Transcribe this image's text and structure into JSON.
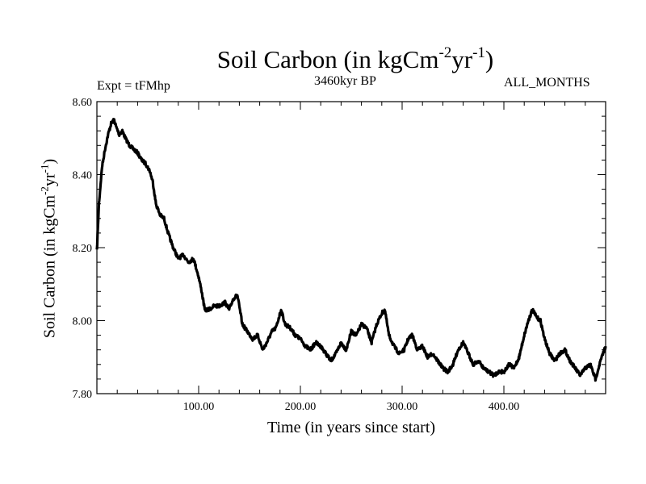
{
  "chart_data": {
    "type": "line",
    "title": {
      "main": "Soil Carbon (in kgCm",
      "sup1": "-2",
      "mid": "yr",
      "sup2": "-1",
      "end": ")"
    },
    "subtitle": "3460kyr BP",
    "experiment": "Expt = tFMhp",
    "months": "ALL_MONTHS",
    "xlabel": "Time (in years since start)",
    "ylabel": {
      "main": "Soil Carbon (in kgCm",
      "sup1": "-2",
      "mid": "yr",
      "sup2": "-1",
      "end": ")"
    },
    "xlim": [
      0,
      500
    ],
    "ylim": [
      7.8,
      8.6
    ],
    "x_ticks": [
      100,
      200,
      300,
      400
    ],
    "x_tick_labels": [
      "100.00",
      "200.00",
      "300.00",
      "400.00"
    ],
    "y_ticks": [
      7.8,
      8.0,
      8.2,
      8.4,
      8.6
    ],
    "y_tick_labels": [
      "7.80",
      "8.00",
      "8.20",
      "8.40",
      "8.60"
    ],
    "grid": false,
    "series": [
      {
        "name": "Soil Carbon",
        "color": "#000000",
        "x": [
          0,
          2,
          5,
          8,
          11,
          14,
          17,
          19,
          22,
          25,
          28,
          32,
          36,
          40,
          44,
          48,
          52,
          55,
          58,
          62,
          66,
          70,
          75,
          80,
          85,
          90,
          95,
          100,
          103,
          106,
          110,
          115,
          120,
          126,
          130,
          134,
          138,
          143,
          148,
          153,
          158,
          163,
          167,
          172,
          176,
          181,
          185,
          190,
          195,
          200,
          205,
          210,
          215,
          220,
          225,
          230,
          235,
          240,
          245,
          250,
          255,
          260,
          265,
          270,
          275,
          280,
          283,
          287,
          292,
          297,
          302,
          306,
          310,
          315,
          320,
          325,
          330,
          335,
          340,
          345,
          350,
          355,
          360,
          365,
          370,
          375,
          380,
          385,
          390,
          395,
          400,
          405,
          410,
          415,
          420,
          424,
          428,
          432,
          436,
          440,
          445,
          450,
          455,
          460,
          465,
          470,
          475,
          480,
          485,
          490,
          495,
          500
        ],
        "y": [
          8.19,
          8.32,
          8.42,
          8.47,
          8.51,
          8.54,
          8.55,
          8.53,
          8.51,
          8.52,
          8.5,
          8.48,
          8.47,
          8.46,
          8.44,
          8.43,
          8.41,
          8.38,
          8.32,
          8.29,
          8.28,
          8.24,
          8.2,
          8.17,
          8.18,
          8.16,
          8.17,
          8.12,
          8.08,
          8.03,
          8.03,
          8.04,
          8.04,
          8.05,
          8.03,
          8.06,
          8.07,
          7.99,
          7.97,
          7.95,
          7.96,
          7.92,
          7.94,
          7.97,
          7.98,
          8.03,
          7.99,
          7.98,
          7.96,
          7.95,
          7.93,
          7.92,
          7.94,
          7.93,
          7.91,
          7.89,
          7.91,
          7.94,
          7.92,
          7.97,
          7.96,
          7.99,
          7.98,
          7.94,
          7.99,
          8.02,
          8.03,
          7.96,
          7.93,
          7.91,
          7.92,
          7.95,
          7.96,
          7.92,
          7.93,
          7.9,
          7.91,
          7.89,
          7.87,
          7.86,
          7.88,
          7.92,
          7.94,
          7.91,
          7.88,
          7.89,
          7.87,
          7.86,
          7.85,
          7.86,
          7.86,
          7.88,
          7.87,
          7.9,
          7.96,
          8.0,
          8.03,
          8.01,
          8.0,
          7.95,
          7.91,
          7.89,
          7.91,
          7.92,
          7.89,
          7.87,
          7.85,
          7.87,
          7.88,
          7.84,
          7.89,
          7.93
        ]
      }
    ]
  }
}
